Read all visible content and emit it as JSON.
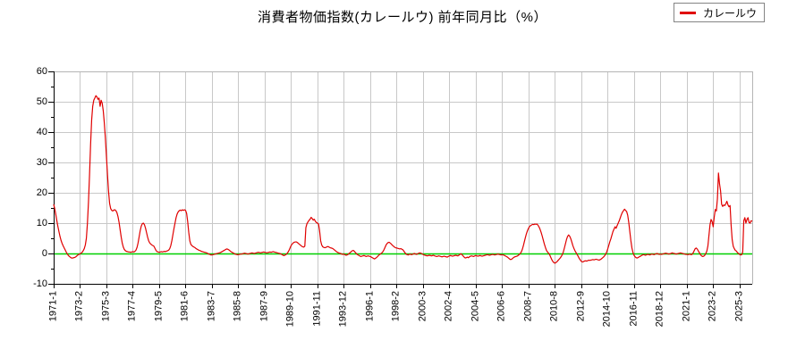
{
  "title": "消費者物価指数(カレールウ) 前年同月比（%）",
  "legend": {
    "label": "カレールウ"
  },
  "colors": {
    "line": "#e00000",
    "zero_line": "#00cf00",
    "grid": "#c8c8c8",
    "axis": "#000000",
    "frame_light": "#b4b4b4",
    "background": "#ffffff",
    "legend_border": "#848484"
  },
  "chart_data": {
    "type": "line",
    "title": "消費者物価指数(カレールウ) 前年同月比（%）",
    "series_name": "カレールウ",
    "xlabel": "",
    "ylabel": "",
    "ylim": [
      -10,
      60
    ],
    "y_ticks": [
      -10,
      0,
      10,
      20,
      30,
      40,
      50,
      60
    ],
    "y_minor_step": 5,
    "grid": true,
    "zero_line": true,
    "legend_position": "top-right",
    "x_start": "1971-01",
    "x_end": "2026-03",
    "frequency": "monthly",
    "x_tick_labels": [
      "1971-1",
      "1973-2",
      "1975-3",
      "1977-4",
      "1979-5",
      "1981-6",
      "1983-7",
      "1985-8",
      "1987-9",
      "1989-10",
      "1991-11",
      "1993-12",
      "1996-1",
      "1998-2",
      "2000-3",
      "2002-4",
      "2004-5",
      "2006-6",
      "2008-7",
      "2010-8",
      "2012-9",
      "2014-10",
      "2016-11",
      "2018-12",
      "2021-1",
      "2023-2",
      "2025-3"
    ],
    "x_tick_month_indices": [
      0,
      25,
      50,
      75,
      100,
      125,
      150,
      175,
      200,
      225,
      250,
      275,
      300,
      325,
      350,
      375,
      400,
      425,
      450,
      475,
      500,
      525,
      550,
      575,
      600,
      625,
      650
    ],
    "values": [
      16.2,
      14.8,
      12.9,
      10.8,
      8.9,
      7.2,
      5.6,
      4.3,
      3.3,
      2.5,
      1.8,
      1.1,
      0.4,
      -0.2,
      -0.7,
      -1.0,
      -1.3,
      -1.5,
      -1.5,
      -1.4,
      -1.3,
      -1.1,
      -0.8,
      -0.5,
      -0.3,
      -0.1,
      0.1,
      0.4,
      0.9,
      1.6,
      2.8,
      5.0,
      10.0,
      17.0,
      26.0,
      36.0,
      44.0,
      48.5,
      50.5,
      51.2,
      52.0,
      51.6,
      50.8,
      51.2,
      48.5,
      50.5,
      49.5,
      47.0,
      43.0,
      38.0,
      32.0,
      26.0,
      20.5,
      16.5,
      14.8,
      14.2,
      14.0,
      14.3,
      14.4,
      14.1,
      13.4,
      12.1,
      10.2,
      7.8,
      5.4,
      3.4,
      2.1,
      1.3,
      0.9,
      0.7,
      0.6,
      0.5,
      0.5,
      0.4,
      0.5,
      0.6,
      0.5,
      0.7,
      1.1,
      2.0,
      3.5,
      5.5,
      7.5,
      9.0,
      9.8,
      10.0,
      9.5,
      8.4,
      6.9,
      5.4,
      4.2,
      3.5,
      3.1,
      2.8,
      2.6,
      2.4,
      1.7,
      1.0,
      0.6,
      0.5,
      0.4,
      0.5,
      0.6,
      0.5,
      0.6,
      0.7,
      0.6,
      0.8,
      0.9,
      1.1,
      1.6,
      2.6,
      4.2,
      6.2,
      8.2,
      10.0,
      11.8,
      13.0,
      13.7,
      14.1,
      14.3,
      14.1,
      14.4,
      14.2,
      14.4,
      14.2,
      13.2,
      10.5,
      7.0,
      4.2,
      3.0,
      2.6,
      2.3,
      2.1,
      1.9,
      1.6,
      1.4,
      1.2,
      1.0,
      0.9,
      0.7,
      0.6,
      0.5,
      0.4,
      0.3,
      0.2,
      0.0,
      -0.2,
      -0.3,
      -0.5,
      -0.5,
      -0.4,
      -0.3,
      -0.2,
      -0.1,
      0.0,
      0.1,
      0.2,
      0.3,
      0.5,
      0.7,
      0.9,
      1.1,
      1.3,
      1.5,
      1.4,
      1.2,
      0.9,
      0.6,
      0.4,
      0.2,
      0.0,
      -0.2,
      -0.3,
      -0.4,
      -0.4,
      -0.3,
      -0.2,
      -0.2,
      -0.1,
      0.0,
      0.1,
      0.0,
      -0.1,
      -0.2,
      -0.1,
      0.0,
      0.1,
      0.2,
      0.1,
      0.0,
      0.1,
      0.2,
      0.3,
      0.4,
      0.3,
      0.2,
      0.3,
      0.4,
      0.5,
      0.4,
      0.3,
      0.2,
      0.3,
      0.4,
      0.5,
      0.4,
      0.5,
      0.6,
      0.5,
      0.4,
      0.3,
      0.2,
      0.1,
      0.0,
      -0.1,
      -0.3,
      -0.5,
      -0.7,
      -0.6,
      -0.4,
      -0.1,
      0.4,
      1.0,
      1.8,
      2.6,
      3.1,
      3.5,
      3.7,
      3.8,
      3.8,
      3.6,
      3.3,
      3.0,
      2.7,
      2.4,
      2.2,
      2.1,
      2.4,
      8.5,
      9.8,
      10.4,
      10.9,
      11.3,
      11.9,
      11.5,
      11.0,
      11.3,
      10.6,
      10.2,
      10.0,
      9.7,
      7.5,
      4.2,
      2.8,
      2.2,
      2.0,
      1.9,
      2.0,
      2.2,
      2.3,
      2.1,
      1.9,
      1.8,
      1.7,
      1.5,
      1.2,
      0.9,
      0.6,
      0.4,
      0.2,
      0.1,
      0.0,
      -0.2,
      -0.3,
      -0.2,
      -0.4,
      -0.6,
      -0.5,
      -0.3,
      0.0,
      0.3,
      0.6,
      0.9,
      1.0,
      0.7,
      0.3,
      -0.1,
      -0.4,
      -0.6,
      -0.8,
      -1.0,
      -0.9,
      -0.8,
      -0.7,
      -0.8,
      -1.0,
      -0.9,
      -0.8,
      -0.9,
      -1.0,
      -1.2,
      -1.4,
      -1.6,
      -1.8,
      -1.6,
      -1.3,
      -1.0,
      -0.6,
      -0.3,
      -0.1,
      0.2,
      0.6,
      1.2,
      2.0,
      2.8,
      3.3,
      3.6,
      3.7,
      3.4,
      3.1,
      2.7,
      2.4,
      2.1,
      1.9,
      1.8,
      1.7,
      1.6,
      1.5,
      1.6,
      1.4,
      1.2,
      0.7,
      0.2,
      -0.2,
      -0.4,
      -0.5,
      -0.3,
      -0.2,
      -0.4,
      -0.3,
      -0.1,
      0.0,
      -0.2,
      -0.3,
      -0.1,
      0.1,
      0.2,
      0.1,
      -0.1,
      -0.3,
      -0.5,
      -0.6,
      -0.7,
      -0.8,
      -0.7,
      -0.6,
      -0.7,
      -0.8,
      -0.7,
      -0.6,
      -0.8,
      -0.9,
      -1.0,
      -0.9,
      -0.8,
      -0.9,
      -1.0,
      -1.1,
      -1.0,
      -0.9,
      -1.0,
      -1.1,
      -1.2,
      -1.0,
      -0.8,
      -0.7,
      -0.8,
      -0.9,
      -0.8,
      -0.7,
      -0.6,
      -0.7,
      -0.8,
      -0.6,
      -0.3,
      -0.1,
      -0.4,
      -0.8,
      -1.2,
      -1.5,
      -1.4,
      -1.2,
      -1.4,
      -1.1,
      -0.9,
      -0.8,
      -0.9,
      -1.0,
      -0.8,
      -0.7,
      -0.8,
      -0.9,
      -0.8,
      -0.7,
      -0.8,
      -0.9,
      -0.8,
      -0.7,
      -0.6,
      -0.5,
      -0.4,
      -0.5,
      -0.6,
      -0.5,
      -0.4,
      -0.3,
      -0.4,
      -0.5,
      -0.4,
      -0.3,
      -0.2,
      -0.3,
      -0.4,
      -0.5,
      -0.4,
      -0.5,
      -0.6,
      -0.8,
      -1.0,
      -1.2,
      -1.5,
      -1.8,
      -2.0,
      -1.9,
      -1.6,
      -1.3,
      -1.1,
      -1.0,
      -0.9,
      -0.7,
      -0.4,
      -0.1,
      0.4,
      1.2,
      2.4,
      3.8,
      5.2,
      6.5,
      7.5,
      8.3,
      8.9,
      9.2,
      9.4,
      9.6,
      9.5,
      9.7,
      9.6,
      9.7,
      9.3,
      8.7,
      7.9,
      6.9,
      5.7,
      4.4,
      3.1,
      2.0,
      1.0,
      0.5,
      0.1,
      -0.4,
      -1.2,
      -2.0,
      -2.6,
      -3.0,
      -3.2,
      -3.0,
      -2.7,
      -2.3,
      -1.9,
      -1.5,
      -1.0,
      -0.4,
      0.5,
      1.8,
      3.2,
      4.6,
      5.6,
      6.1,
      5.7,
      4.9,
      3.8,
      2.6,
      1.7,
      0.9,
      0.3,
      -0.3,
      -0.9,
      -1.6,
      -2.1,
      -2.6,
      -2.8,
      -2.7,
      -2.5,
      -2.4,
      -2.5,
      -2.4,
      -2.2,
      -2.3,
      -2.2,
      -2.1,
      -2.0,
      -2.1,
      -2.0,
      -1.9,
      -2.0,
      -2.1,
      -2.2,
      -2.0,
      -1.8,
      -1.5,
      -1.2,
      -0.8,
      -0.3,
      0.4,
      1.4,
      2.6,
      3.8,
      4.8,
      6.0,
      7.2,
      8.0,
      8.8,
      8.3,
      9.2,
      10.0,
      10.8,
      11.8,
      12.8,
      13.6,
      14.1,
      14.6,
      14.2,
      13.8,
      12.6,
      10.2,
      7.2,
      4.2,
      1.8,
      0.3,
      -0.6,
      -1.1,
      -1.4,
      -1.5,
      -1.3,
      -1.1,
      -0.9,
      -0.7,
      -0.5,
      -0.4,
      -0.5,
      -0.6,
      -0.4,
      -0.3,
      -0.4,
      -0.5,
      -0.3,
      -0.2,
      -0.3,
      -0.4,
      -0.2,
      -0.1,
      0.0,
      -0.2,
      -0.3,
      -0.2,
      -0.3,
      -0.2,
      -0.1,
      0.0,
      0.1,
      0.0,
      -0.1,
      -0.2,
      -0.1,
      0.0,
      0.2,
      0.1,
      0.0,
      -0.1,
      -0.2,
      -0.1,
      0.0,
      0.1,
      0.2,
      0.1,
      0.0,
      -0.1,
      -0.2,
      -0.3,
      -0.3,
      -0.4,
      -0.3,
      -0.2,
      -0.4,
      -0.3,
      0.2,
      0.9,
      1.6,
      1.8,
      1.4,
      0.8,
      0.2,
      -0.4,
      -0.8,
      -1.0,
      -0.9,
      -0.6,
      0.0,
      0.8,
      2.5,
      6.0,
      9.5,
      11.2,
      10.5,
      8.8,
      12.0,
      14.5,
      14.0,
      18.0,
      26.5,
      23.0,
      20.6,
      16.2,
      15.5,
      16.0,
      15.8,
      16.4,
      17.2,
      16.0,
      15.4,
      15.8,
      9.3,
      4.6,
      2.4,
      1.6,
      1.0,
      0.8,
      0.3,
      0.0,
      -0.3,
      -0.5,
      -0.4,
      0.5,
      10.8,
      11.8,
      10.0,
      11.2,
      11.8,
      10.2,
      10.0,
      10.8,
      10.6
    ]
  }
}
